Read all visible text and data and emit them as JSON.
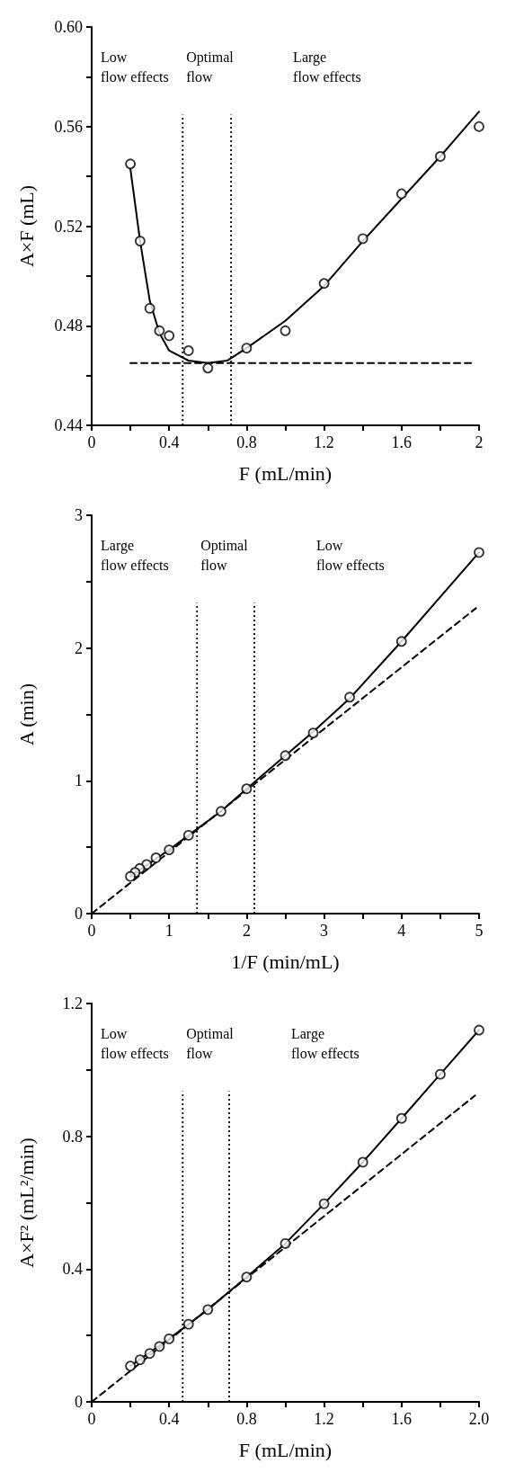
{
  "chart_data": [
    {
      "type": "scatter",
      "xlabel": "F (mL/min)",
      "ylabel": "A×F (mL)",
      "xlim": [
        0,
        2
      ],
      "ylim": [
        0.44,
        0.6
      ],
      "xticks": [
        0,
        {
          "value": 0.2,
          "label": null
        },
        0.4,
        {
          "value": 0.6,
          "label": null
        },
        0.8,
        {
          "value": 1,
          "label": null
        },
        1.2,
        {
          "value": 1.4,
          "label": null
        },
        1.6,
        {
          "value": 1.8,
          "label": null
        },
        2
      ],
      "yticks": [
        0.44,
        {
          "value": 0.46,
          "label": null
        },
        0.48,
        {
          "value": 0.5,
          "label": null
        },
        0.52,
        {
          "value": 0.54,
          "label": null
        },
        0.56,
        {
          "value": 0.58,
          "label": null
        },
        {
          "value": 0.6,
          "label": "0.60"
        }
      ],
      "series": [
        {
          "type": "scatter",
          "color": "#000000",
          "marker": "circle",
          "x": [
            0.2,
            0.25,
            0.3,
            0.35,
            0.4,
            0.5,
            0.6,
            0.8,
            1,
            1.2,
            1.4,
            1.6,
            1.8,
            2
          ],
          "values": [
            0.545,
            0.514,
            0.487,
            0.478,
            0.476,
            0.47,
            0.463,
            0.471,
            0.478,
            0.497,
            0.515,
            0.533,
            0.548,
            0.56
          ]
        },
        {
          "type": "line",
          "color": "#000000",
          "marker": "none",
          "line_style": "solid",
          "x": [
            0.2,
            0.25,
            0.3,
            0.35,
            0.4,
            0.5,
            0.6,
            0.7,
            0.8,
            1,
            1.2,
            1.4,
            1.6,
            1.8,
            2
          ],
          "values": [
            0.543,
            0.514,
            0.49,
            0.477,
            0.47,
            0.466,
            0.465,
            0.466,
            0.471,
            0.482,
            0.496,
            0.514,
            0.531,
            0.548,
            0.566
          ]
        },
        {
          "type": "line",
          "color": "#000000",
          "marker": "none",
          "line_style": "dashed",
          "x": [
            0.2,
            1.97
          ],
          "values": [
            0.465,
            0.465
          ]
        }
      ],
      "ref_lines": [
        {
          "axis": "x",
          "value": 0.47,
          "line_style": "dotted",
          "color": "#000000"
        },
        {
          "axis": "x",
          "value": 0.72,
          "line_style": "dotted",
          "color": "#000000"
        }
      ],
      "annotations": [
        "Low\nflow effects",
        "Optimal\nflow",
        "Large\nflow effects"
      ],
      "grid": false
    },
    {
      "type": "scatter",
      "xlabel": "1/F (min/mL)",
      "ylabel": "A (min)",
      "xlim": [
        0,
        5
      ],
      "ylim": [
        0,
        3
      ],
      "xticks": [
        0,
        {
          "value": 0.5,
          "label": null
        },
        1,
        {
          "value": 1.5,
          "label": null
        },
        2,
        {
          "value": 2.5,
          "label": null
        },
        3,
        {
          "value": 3.5,
          "label": null
        },
        4,
        {
          "value": 4.5,
          "label": null
        },
        5
      ],
      "yticks": [
        0,
        {
          "value": 0.5,
          "label": null
        },
        1,
        {
          "value": 1.5,
          "label": null
        },
        2,
        {
          "value": 2.5,
          "label": null
        },
        3
      ],
      "series": [
        {
          "type": "scatter",
          "color": "#000000",
          "marker": "circle",
          "x": [
            5,
            4,
            3.33,
            2.86,
            2.5,
            2,
            1.67,
            1.25,
            1,
            0.83,
            0.71,
            0.62,
            0.56,
            0.5
          ],
          "values": [
            2.72,
            2.05,
            1.63,
            1.36,
            1.19,
            0.94,
            0.77,
            0.59,
            0.48,
            0.42,
            0.37,
            0.34,
            0.31,
            0.28
          ]
        },
        {
          "type": "line",
          "color": "#000000",
          "marker": "none",
          "line_style": "solid",
          "x": [
            0.5,
            1,
            1.25,
            1.67,
            2,
            2.5,
            2.86,
            3.33,
            4,
            5
          ],
          "values": [
            0.28,
            0.48,
            0.59,
            0.77,
            0.94,
            1.19,
            1.37,
            1.62,
            2.05,
            2.72
          ]
        },
        {
          "type": "line",
          "color": "#000000",
          "marker": "none",
          "line_style": "dashed",
          "x": [
            0,
            4.96
          ],
          "values": [
            0,
            2.3
          ]
        }
      ],
      "ref_lines": [
        {
          "axis": "x",
          "value": 1.36,
          "line_style": "dotted",
          "color": "#000000"
        },
        {
          "axis": "x",
          "value": 2.1,
          "line_style": "dotted",
          "color": "#000000"
        }
      ],
      "annotations": [
        "Large\nflow effects",
        "Optimal\nflow",
        "Low\nflow effects"
      ],
      "grid": false
    },
    {
      "type": "scatter",
      "xlabel": "F (mL/min)",
      "ylabel": "A×F² (mL²/min)",
      "xlim": [
        0,
        2
      ],
      "ylim": [
        0,
        1.2
      ],
      "xticks": [
        0,
        {
          "value": 0.2,
          "label": null
        },
        0.4,
        {
          "value": 0.6,
          "label": null
        },
        0.8,
        {
          "value": 1,
          "label": null
        },
        1.2,
        {
          "value": 1.4,
          "label": null
        },
        1.6,
        {
          "value": 1.8,
          "label": null
        },
        {
          "value": 2,
          "label": "2.0"
        }
      ],
      "yticks": [
        0,
        {
          "value": 0.2,
          "label": null
        },
        0.4,
        {
          "value": 0.6,
          "label": null
        },
        0.8,
        {
          "value": 1,
          "label": null
        },
        1.2
      ],
      "series": [
        {
          "type": "scatter",
          "color": "#000000",
          "marker": "circle",
          "x": [
            0.2,
            0.25,
            0.3,
            0.35,
            0.4,
            0.5,
            0.6,
            0.8,
            1,
            1.2,
            1.4,
            1.6,
            1.8,
            2
          ],
          "values": [
            0.108,
            0.127,
            0.146,
            0.167,
            0.19,
            0.234,
            0.278,
            0.376,
            0.477,
            0.597,
            0.722,
            0.854,
            0.987,
            1.12
          ]
        },
        {
          "type": "line",
          "color": "#000000",
          "marker": "none",
          "line_style": "solid",
          "x": [
            0.2,
            0.4,
            0.6,
            0.8,
            1,
            1.2,
            1.4,
            1.6,
            1.8,
            2
          ],
          "values": [
            0.108,
            0.19,
            0.278,
            0.376,
            0.477,
            0.597,
            0.722,
            0.854,
            0.987,
            1.12
          ]
        },
        {
          "type": "line",
          "color": "#000000",
          "marker": "none",
          "line_style": "dashed",
          "x": [
            0,
            1.98
          ],
          "values": [
            0,
            0.923
          ]
        }
      ],
      "ref_lines": [
        {
          "axis": "x",
          "value": 0.47,
          "line_style": "dotted",
          "color": "#000000"
        },
        {
          "axis": "x",
          "value": 0.71,
          "line_style": "dotted",
          "color": "#000000"
        }
      ],
      "annotations": [
        "Low\nflow effects",
        "Optimal\nflow",
        "Large\nflow effects"
      ],
      "grid": false
    }
  ]
}
